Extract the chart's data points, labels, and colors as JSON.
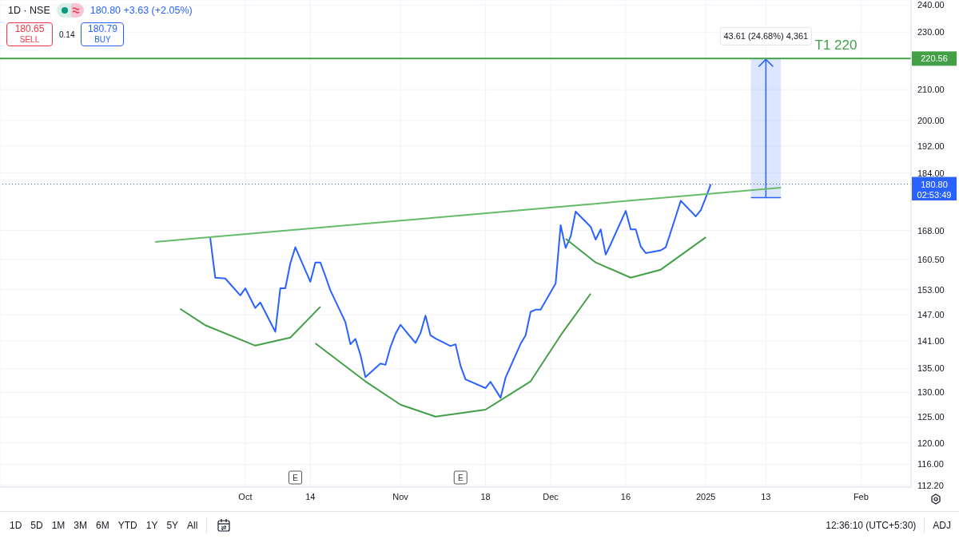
{
  "chart_data": {
    "type": "line",
    "title": "1D · NSE",
    "xlim": [
      "2024-08-13",
      "2025-02-11"
    ],
    "xticks": [
      {
        "value": "2024-10-01",
        "label": "Oct"
      },
      {
        "value": "2024-10-14",
        "label": "14"
      },
      {
        "value": "2024-11-01",
        "label": "Nov"
      },
      {
        "value": "2024-11-18",
        "label": "18"
      },
      {
        "value": "2024-12-01",
        "label": "Dec"
      },
      {
        "value": "2024-12-16",
        "label": "16"
      },
      {
        "value": "2025-01-01",
        "label": "2025"
      },
      {
        "value": "2025-01-13",
        "label": "13"
      },
      {
        "value": "2025-02-01",
        "label": "Feb"
      }
    ],
    "ylim": [
      111.9,
      242
    ],
    "log": true,
    "yticks": [
      {
        "value": 112.2,
        "label": "112.20"
      },
      {
        "value": 116,
        "label": "116.00"
      },
      {
        "value": 120,
        "label": "120.00"
      },
      {
        "value": 125,
        "label": "125.00"
      },
      {
        "value": 130,
        "label": "130.00"
      },
      {
        "value": 135,
        "label": "135.00"
      },
      {
        "value": 141,
        "label": "141.00"
      },
      {
        "value": 147,
        "label": "147.00"
      },
      {
        "value": 153,
        "label": "153.00"
      },
      {
        "value": 160.5,
        "label": "160.50"
      },
      {
        "value": 168,
        "label": "168.00"
      },
      {
        "value": 184,
        "label": "184.00"
      },
      {
        "value": 192,
        "label": "192.00"
      },
      {
        "value": 200,
        "label": "200.00"
      },
      {
        "value": 210,
        "label": "210.00"
      },
      {
        "value": 230,
        "label": "230.00"
      },
      {
        "value": 240,
        "label": "240.00"
      }
    ],
    "grid": true,
    "series": [
      {
        "color": "#2962ff",
        "x": [
          "2024-09-24",
          "2024-09-25",
          "2024-09-26",
          "2024-09-27",
          "2024-09-30",
          "2024-10-01",
          "2024-10-03",
          "2024-10-04",
          "2024-10-07",
          "2024-10-08",
          "2024-10-09",
          "2024-10-10",
          "2024-10-11",
          "2024-10-14",
          "2024-10-15",
          "2024-10-16",
          "2024-10-17",
          "2024-10-18",
          "2024-10-21",
          "2024-10-22",
          "2024-10-23",
          "2024-10-24",
          "2024-10-25",
          "2024-10-28",
          "2024-10-29",
          "2024-10-30",
          "2024-10-31",
          "2024-11-01",
          "2024-11-04",
          "2024-11-05",
          "2024-11-06",
          "2024-11-07",
          "2024-11-08",
          "2024-11-11",
          "2024-11-12",
          "2024-11-13",
          "2024-11-14",
          "2024-11-18",
          "2024-11-19",
          "2024-11-21",
          "2024-11-22",
          "2024-11-25",
          "2024-11-26",
          "2024-11-27",
          "2024-11-28",
          "2024-11-29",
          "2024-12-02",
          "2024-12-03",
          "2024-12-04",
          "2024-12-05",
          "2024-12-06",
          "2024-12-09",
          "2024-12-10",
          "2024-12-11",
          "2024-12-12",
          "2024-12-13",
          "2024-12-16",
          "2024-12-17",
          "2024-12-18",
          "2024-12-19",
          "2024-12-20",
          "2024-12-23",
          "2024-12-24",
          "2024-12-26",
          "2024-12-27",
          "2024-12-30",
          "2024-12-31",
          "2025-01-01",
          "2025-01-02"
        ],
        "values": [
          166.0,
          155.9,
          155.8,
          155.7,
          151.6,
          153.3,
          148.6,
          149.9,
          143.1,
          153.3,
          153.3,
          159.5,
          163.6,
          154.9,
          159.7,
          159.7,
          156.3,
          152.8,
          145.3,
          140.3,
          141.5,
          138.0,
          133.2,
          136.1,
          135.8,
          139.7,
          142.6,
          144.7,
          140.6,
          142.8,
          146.8,
          142.3,
          141.6,
          139.9,
          140.3,
          135.6,
          132.7,
          130.9,
          132.2,
          128.9,
          133.1,
          140.4,
          142.3,
          147.7,
          148.2,
          148.2,
          154.5,
          169.4,
          163.4,
          166.4,
          173.1,
          169.0,
          165.6,
          168.3,
          161.7,
          164.4,
          173.3,
          168.3,
          168.3,
          163.8,
          162.1,
          162.8,
          163.6,
          171.8,
          176.1,
          171.8,
          173.5,
          177.0,
          180.8
        ]
      },
      {
        "type": "bar",
        "color": "#2962ff",
        "x": [
          "2025-01-13"
        ],
        "values": [
          43.61
        ],
        "base": [
          176.95
        ]
      },
      {
        "color": "#66bb6a",
        "x": [
          "2024-09-13",
          "2025-01-16"
        ],
        "values": [
          165.0,
          179.8
        ]
      },
      {
        "color": "#43a047",
        "x": [
          "2024-09-18",
          "2024-09-23",
          "2024-10-03",
          "2024-10-10",
          "2024-10-16"
        ],
        "values": [
          148.4,
          144.6,
          140.0,
          141.8,
          148.9
        ]
      },
      {
        "color": "#43a047",
        "x": [
          "2024-10-15",
          "2024-10-25",
          "2024-11-01",
          "2024-11-08",
          "2024-11-18",
          "2024-11-27",
          "2024-12-03",
          "2024-12-09"
        ],
        "values": [
          140.5,
          132.3,
          127.5,
          125.1,
          126.5,
          132.3,
          142.3,
          152.0
        ]
      },
      {
        "color": "#43a047",
        "x": [
          "2024-12-04",
          "2024-12-10",
          "2024-12-17",
          "2024-12-23",
          "2025-01-01"
        ],
        "values": [
          165.8,
          159.7,
          155.9,
          157.9,
          166.2
        ]
      }
    ],
    "ref_lines": [
      {
        "axis": "y",
        "value": 220.56,
        "label": "220.56",
        "color": "#43a047",
        "line_style": "solid"
      },
      {
        "axis": "y",
        "value": 180.8,
        "label": "180.80",
        "color": "#2962ff",
        "line_style": "dotted"
      }
    ],
    "annotations": [
      "180.80 +3.63 (+2.05%)",
      "180.65",
      "SELL",
      "0.14",
      "180.79",
      "BUY",
      "02:53:49",
      "1D",
      "5D",
      "1M",
      "3M",
      "6M",
      "YTD",
      "1Y",
      "5Y",
      "All",
      "12:36:10 (UTC+5:30)",
      "ADJ",
      {
        "text": "43.61 (24.68%) 4,361",
        "x": "2025-01-13",
        "y": 220.56
      },
      {
        "text": "T1 220",
        "x": "2025-01-27",
        "y": 220.56
      },
      {
        "text": "E",
        "x": "2024-10-11"
      },
      {
        "text": "E",
        "x": "2024-11-13"
      }
    ]
  }
}
